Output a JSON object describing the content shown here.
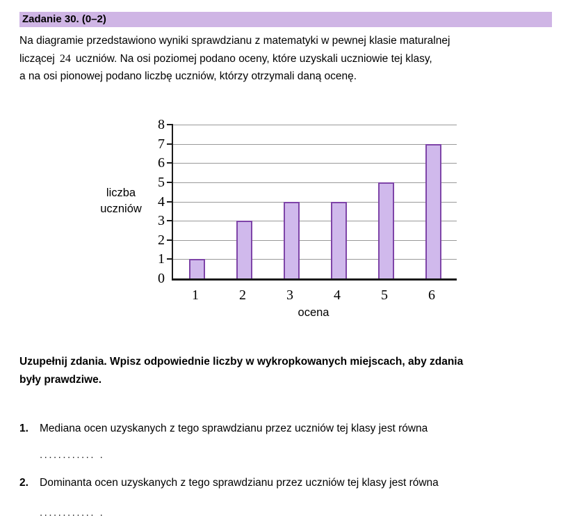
{
  "task": {
    "header": "Zadanie 30. (0–2)",
    "intro_line1": "Na diagramie przedstawiono wyniki sprawdzianu z matematyki w pewnej klasie maturalnej",
    "intro_line2_prefix": "liczącej",
    "intro_line2_number": "24",
    "intro_line2_suffix": "uczniów. Na osi poziomej podano oceny, które uzyskali uczniowie tej klasy,",
    "intro_line3": "a na osi pionowej podano liczbę uczniów, którzy otrzymali daną ocenę.",
    "instruction_line1": "Uzupełnij zdania. Wpisz odpowiednie liczby w wykropkowanych miejscach, aby zdania",
    "instruction_line2": "były prawdziwe.",
    "items": [
      {
        "number": "1.",
        "text": "Mediana ocen uzyskanych z tego sprawdzianu przez uczniów tej klasy jest równa",
        "dots": "............ ."
      },
      {
        "number": "2.",
        "text": "Dominanta ocen uzyskanych z tego sprawdzianu przez uczniów tej klasy jest równa",
        "dots": "............ ."
      }
    ]
  },
  "chart_data": {
    "type": "bar",
    "categories": [
      "1",
      "2",
      "3",
      "4",
      "5",
      "6"
    ],
    "values": [
      1,
      3,
      4,
      4,
      5,
      7
    ],
    "title": "",
    "xlabel": "ocena",
    "ylabel": "liczba uczniów",
    "ylim": [
      0,
      8
    ],
    "ytick_step": 1,
    "grid": true,
    "legend": false,
    "bar_fill": "#d0b9ec",
    "bar_border": "#7e44a8",
    "grid_color": "#999999"
  },
  "colors": {
    "header_bg": "#cfb5e5",
    "axis": "#1a1a1a"
  }
}
